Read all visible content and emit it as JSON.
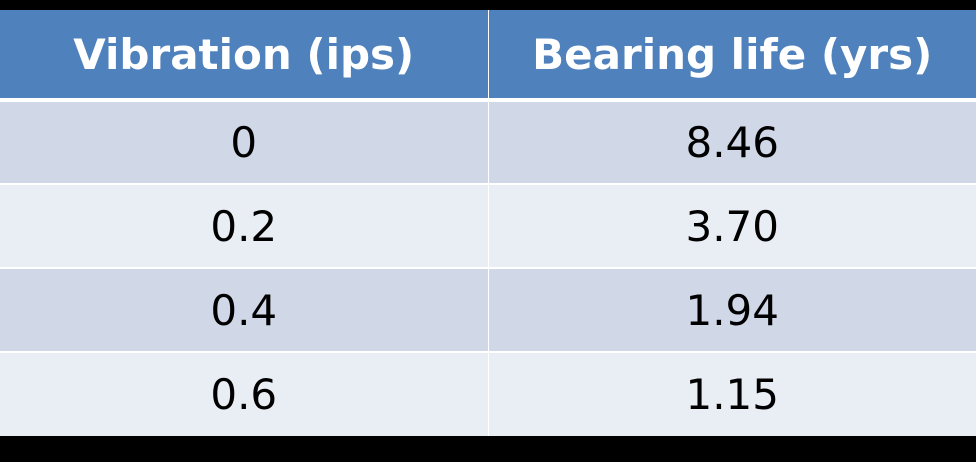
{
  "table": {
    "headers": [
      "Vibration (ips)",
      "Bearing life (yrs)"
    ],
    "rows": [
      [
        "0",
        "8.46"
      ],
      [
        "0.2",
        "3.70"
      ],
      [
        "0.4",
        "1.94"
      ],
      [
        "0.6",
        "1.15"
      ]
    ]
  },
  "colors": {
    "header_background": "#4f81bd",
    "header_text": "#ffffff",
    "row_odd": "#d0d8e8",
    "row_even": "#e9edf4",
    "page_background": "#000000"
  }
}
